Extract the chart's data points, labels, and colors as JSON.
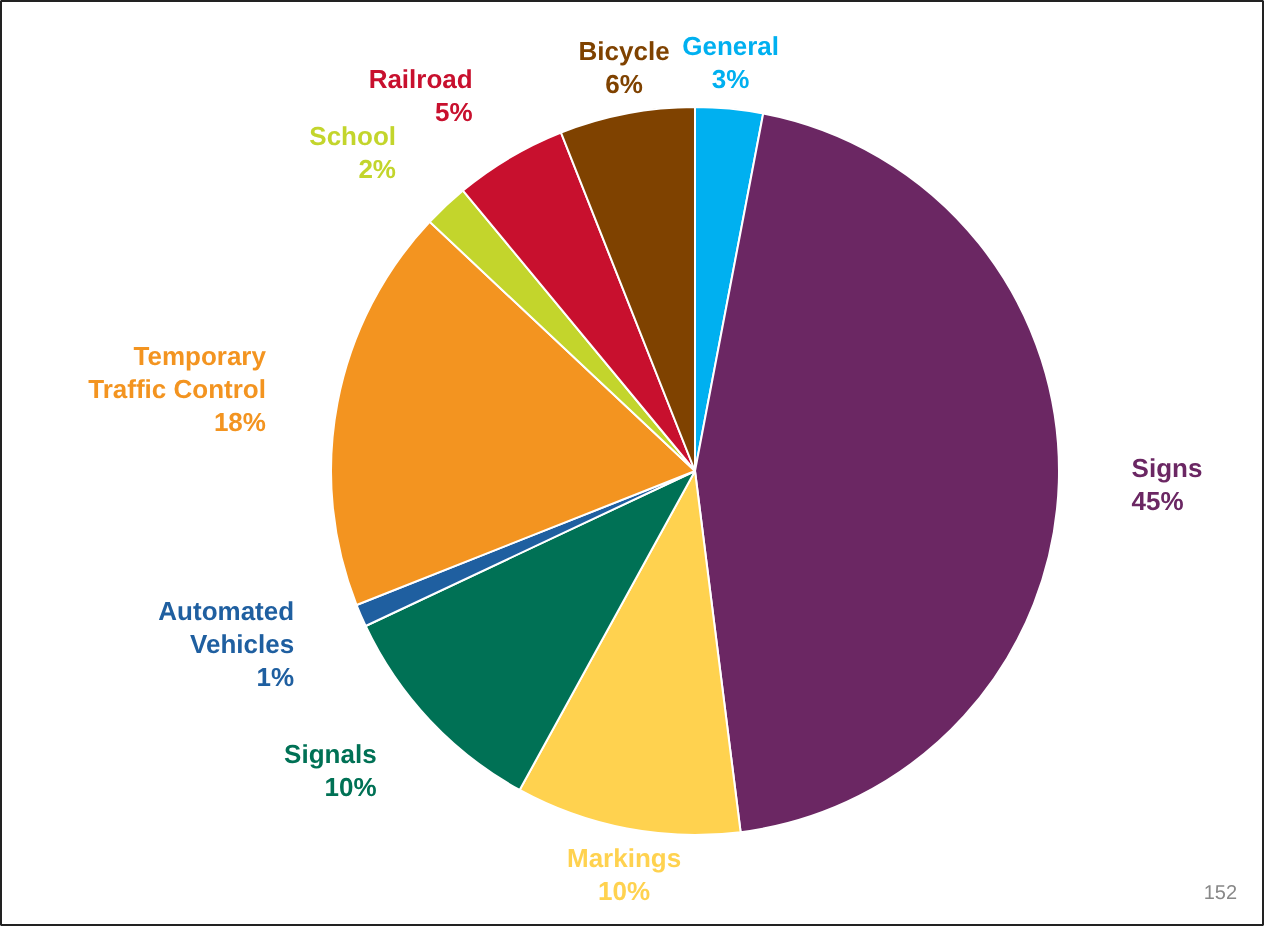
{
  "chart_data": {
    "type": "pie",
    "categories": [
      "General",
      "Signs",
      "Markings",
      "Signals",
      "Automated Vehicles",
      "Temporary Traffic Control",
      "School",
      "Railroad",
      "Bicycle"
    ],
    "values": [
      3,
      45,
      10,
      10,
      1,
      18,
      2,
      5,
      6
    ],
    "colors": [
      "#00b0f0",
      "#6b2763",
      "#ffd24f",
      "#007155",
      "#1f5fa0",
      "#f39420",
      "#c3d52c",
      "#c8102e",
      "#7f4200"
    ],
    "value_labels": [
      "3%",
      "45%",
      "10%",
      "10%",
      "1%",
      "18%",
      "2%",
      "5%",
      "6%"
    ],
    "annotations": [
      "152"
    ]
  }
}
